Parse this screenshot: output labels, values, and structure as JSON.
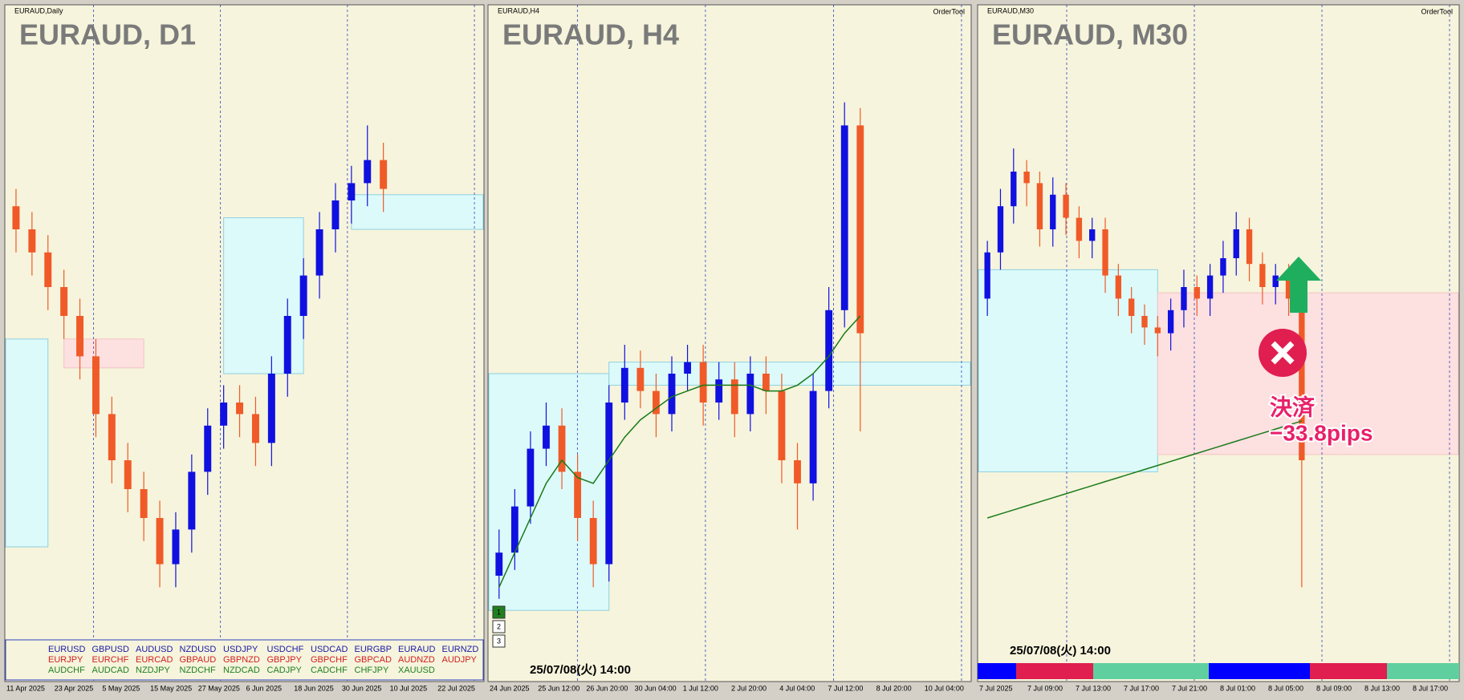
{
  "panels": [
    {
      "window_label": "EURAUD,Daily",
      "title": "EURAUD, D1",
      "dates": [
        "11 Apr 2025",
        "23 Apr 2025",
        "5 May 2025",
        "15 May 2025",
        "27 May 2025",
        "6 Jun 2025",
        "18 Jun 2025",
        "30 Jun 2025",
        "10 Jul 2025",
        "22 Jul 2025"
      ],
      "candles": [
        [
          74,
          77,
          66,
          70
        ],
        [
          70,
          73,
          62,
          66
        ],
        [
          66,
          69,
          56,
          60
        ],
        [
          60,
          63,
          51,
          55
        ],
        [
          55,
          58,
          44,
          48
        ],
        [
          48,
          51,
          34,
          38
        ],
        [
          38,
          41,
          26,
          30
        ],
        [
          30,
          33,
          21,
          25
        ],
        [
          25,
          28,
          16,
          20
        ],
        [
          20,
          23,
          8,
          12
        ],
        [
          12,
          21,
          8,
          18
        ],
        [
          18,
          31,
          14,
          28
        ],
        [
          28,
          39,
          24,
          36
        ],
        [
          36,
          43,
          32,
          40
        ],
        [
          40,
          43,
          34,
          38
        ],
        [
          38,
          41,
          29,
          33
        ],
        [
          33,
          48,
          29,
          45
        ],
        [
          45,
          58,
          41,
          55
        ],
        [
          55,
          65,
          51,
          62
        ],
        [
          62,
          73,
          58,
          70
        ],
        [
          70,
          78,
          66,
          75
        ],
        [
          75,
          81,
          71,
          78
        ],
        [
          78,
          88,
          74,
          82
        ],
        [
          82,
          85,
          73,
          77
        ]
      ],
      "zones": [
        {
          "from": -1,
          "to": 2,
          "top": 51,
          "bottom": 15,
          "color": "#dcfafa"
        },
        {
          "from": 3,
          "to": 8,
          "top": 51,
          "bottom": 46,
          "color": "#fde0e0"
        },
        {
          "from": 13,
          "to": 18,
          "top": 72,
          "bottom": 45,
          "color": "#dcfafa"
        },
        {
          "from": 21,
          "to": 40,
          "top": 76,
          "bottom": 70,
          "color": "#dcfafa"
        }
      ],
      "symbols": [
        {
          "color": "#1a1aa6",
          "names": [
            "EURUSD",
            "GBPUSD",
            "AUDUSD",
            "NZDUSD",
            "USDJPY",
            "USDCHF",
            "USDCAD",
            "EURGBP",
            "EURAUD",
            "EURNZD"
          ]
        },
        {
          "color": "#d02020",
          "names": [
            "EURJPY",
            "EURCHF",
            "EURCAD",
            "GBPAUD",
            "GBPNZD",
            "GBPJPY",
            "GBPCHF",
            "GBPCAD",
            "AUDNZD",
            "AUDJPY"
          ]
        },
        {
          "color": "#208020",
          "names": [
            "AUDCHF",
            "AUDCAD",
            "NZDJPY",
            "NZDCHF",
            "NZDCAD",
            "CADJPY",
            "CADCHF",
            "CHFJPY",
            "XAUUSD"
          ]
        }
      ]
    },
    {
      "window_label": "EURAUD,H4",
      "title": "EURAUD, H4",
      "order_tool": "OrderTool",
      "dates": [
        "24 Jun 2025",
        "25 Jun 12:00",
        "26 Jun 20:00",
        "30 Jun 04:00",
        "1 Jul 12:00",
        "2 Jul 20:00",
        "4 Jul 04:00",
        "7 Jul 12:00",
        "8 Jul 20:00",
        "10 Jul 04:00"
      ],
      "candles": [
        [
          10,
          18,
          6,
          14
        ],
        [
          14,
          25,
          11,
          22
        ],
        [
          22,
          35,
          19,
          32
        ],
        [
          32,
          40,
          29,
          36
        ],
        [
          36,
          39,
          25,
          28
        ],
        [
          28,
          31,
          16,
          20
        ],
        [
          20,
          23,
          8,
          12
        ],
        [
          12,
          43,
          9,
          40
        ],
        [
          40,
          50,
          37,
          46
        ],
        [
          46,
          49,
          39,
          42
        ],
        [
          42,
          45,
          34,
          38
        ],
        [
          38,
          48,
          35,
          45
        ],
        [
          45,
          50,
          42,
          47
        ],
        [
          47,
          50,
          36,
          40
        ],
        [
          40,
          47,
          37,
          44
        ],
        [
          44,
          47,
          34,
          38
        ],
        [
          38,
          48,
          35,
          45
        ],
        [
          45,
          48,
          38,
          42
        ],
        [
          42,
          45,
          26,
          30
        ],
        [
          30,
          33,
          18,
          26
        ],
        [
          26,
          45,
          23,
          42
        ],
        [
          42,
          60,
          39,
          56
        ],
        [
          56,
          92,
          53,
          88
        ],
        [
          88,
          91,
          35,
          52
        ]
      ],
      "ma": [
        8,
        14,
        20,
        26,
        30,
        27,
        26,
        30,
        34,
        37,
        39,
        41,
        42,
        43,
        43,
        43,
        43,
        42,
        42,
        43,
        45,
        48,
        52,
        55
      ],
      "zones": [
        {
          "from": -1,
          "to": 7,
          "top": 45,
          "bottom": 4,
          "color": "#dcfafa"
        },
        {
          "from": 7,
          "to": 40,
          "top": 47,
          "bottom": 43,
          "color": "#dcfafa"
        }
      ],
      "buttons": [
        "1",
        "2",
        "3"
      ],
      "stamp": "25/07/08(火) 14:00"
    },
    {
      "window_label": "EURAUD,M30",
      "title": "EURAUD, M30",
      "order_tool": "OrderTool",
      "dates": [
        "7 Jul 2025",
        "7 Jul 09:00",
        "7 Jul 13:00",
        "7 Jul 17:00",
        "7 Jul 21:00",
        "8 Jul 01:00",
        "8 Jul 05:00",
        "8 Jul 09:00",
        "8 Jul 13:00",
        "8 Jul 17:00"
      ],
      "candles": [
        [
          58,
          68,
          55,
          66
        ],
        [
          66,
          77,
          63,
          74
        ],
        [
          74,
          84,
          71,
          80
        ],
        [
          80,
          82,
          74,
          78
        ],
        [
          78,
          80,
          67,
          70
        ],
        [
          70,
          79,
          67,
          76
        ],
        [
          76,
          78,
          69,
          72
        ],
        [
          72,
          74,
          65,
          68
        ],
        [
          68,
          72,
          65,
          70
        ],
        [
          70,
          72,
          59,
          62
        ],
        [
          62,
          64,
          55,
          58
        ],
        [
          58,
          60,
          52,
          55
        ],
        [
          55,
          57,
          50,
          53
        ],
        [
          53,
          55,
          48,
          52
        ],
        [
          52,
          58,
          49,
          56
        ],
        [
          56,
          63,
          53,
          60
        ],
        [
          60,
          62,
          55,
          58
        ],
        [
          58,
          64,
          55,
          62
        ],
        [
          62,
          68,
          59,
          65
        ],
        [
          65,
          73,
          62,
          70
        ],
        [
          70,
          72,
          61,
          64
        ],
        [
          64,
          66,
          57,
          60
        ],
        [
          60,
          64,
          57,
          62
        ],
        [
          62,
          64,
          55,
          58
        ],
        [
          58,
          62,
          8,
          30
        ]
      ],
      "ma": [
        20,
        20.7,
        21.4,
        22.1,
        22.8,
        23.5,
        24.2,
        24.9,
        25.6,
        26.3,
        27,
        27.7,
        28.4,
        29.1,
        29.8,
        30.5,
        31.2,
        31.9,
        32.6,
        33.3,
        34,
        34.7,
        35.4,
        36.1,
        36.8
      ],
      "zones": [
        {
          "from": -1,
          "to": 13,
          "top": 63,
          "bottom": 28,
          "color": "#dcfafa"
        },
        {
          "from": 13,
          "to": 60,
          "top": 59,
          "bottom": 31,
          "color": "#fde0e0"
        }
      ],
      "stamp": "25/07/08(火) 14:00",
      "annotation": [
        "決済",
        "−33.8pips"
      ]
    }
  ]
}
